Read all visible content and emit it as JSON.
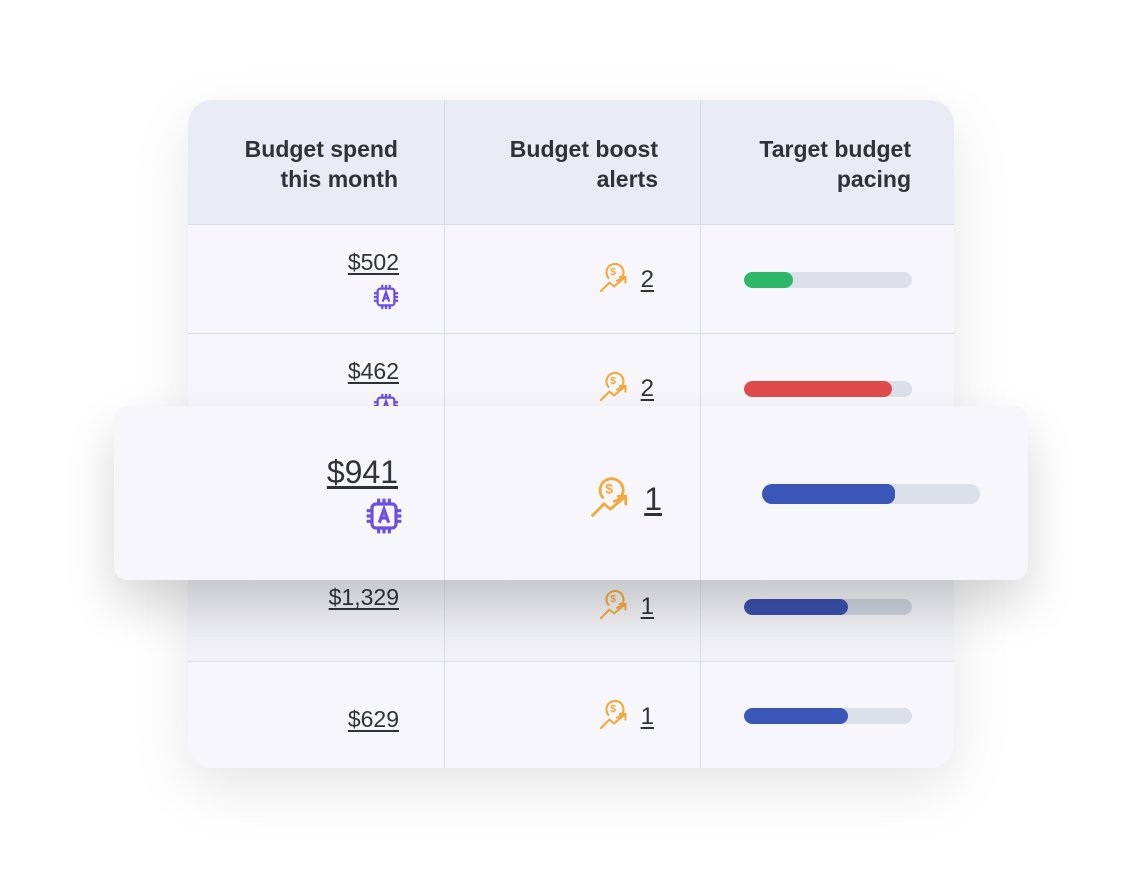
{
  "headers": [
    "Budget spend this month",
    "Budget boost alerts",
    "Target budget pacing"
  ],
  "header_lines": [
    [
      "Budget spend",
      "this month"
    ],
    [
      "Budget boost",
      "alerts"
    ],
    [
      "Target budget",
      "pacing"
    ]
  ],
  "rows": [
    {
      "spend": "$502",
      "ai_icon": true,
      "alerts": "2",
      "pacing": 0.29,
      "pacing_color": "#2fb86a"
    },
    {
      "spend": "$462",
      "ai_icon": true,
      "alerts": "2",
      "pacing": 0.88,
      "pacing_color": "#e04a4a"
    },
    {
      "spend": "$1,329",
      "ai_icon": false,
      "alerts": "1",
      "pacing": 0.62,
      "pacing_color": "#3a4fa8"
    },
    {
      "spend": "$629",
      "ai_icon": false,
      "alerts": "1",
      "pacing": 0.62,
      "pacing_color": "#3a57b8"
    }
  ],
  "highlighted_row": {
    "spend": "$941",
    "ai_icon": true,
    "alerts": "1",
    "pacing": 0.61,
    "pacing_color": "#3a57b8"
  },
  "icons": {
    "ai": "ai-chip-icon",
    "alert": "dollar-growth-icon"
  },
  "colors": {
    "ai": "#6b4fe0",
    "alert": "#f2a93b",
    "track": "#dbe0e9"
  }
}
